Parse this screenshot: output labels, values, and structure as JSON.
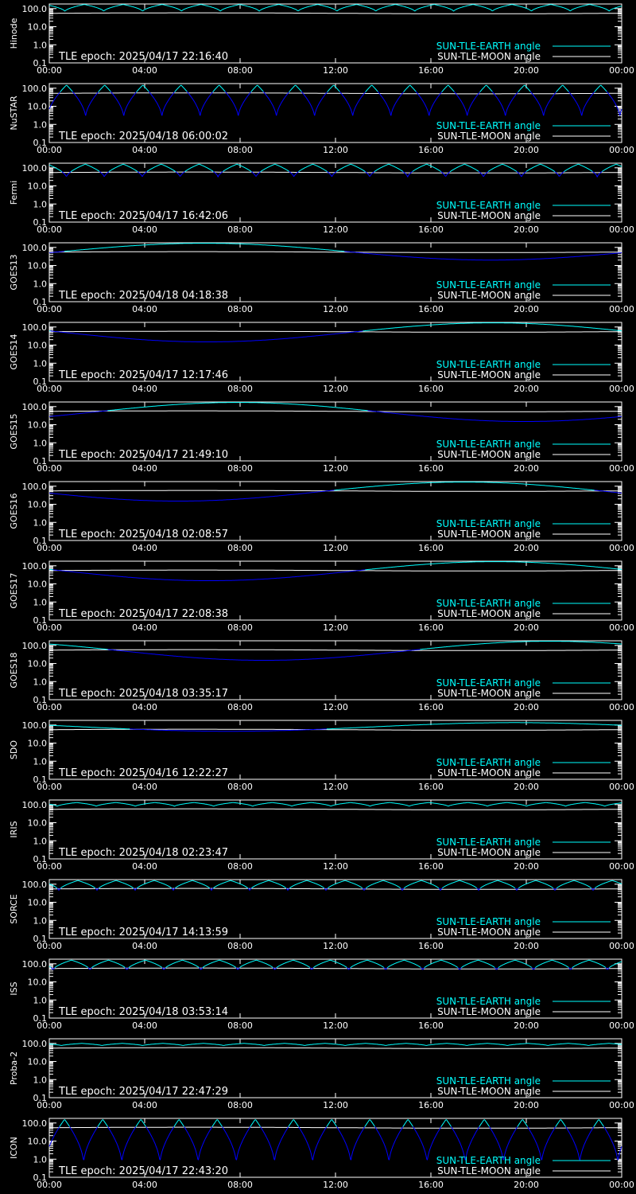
{
  "colors": {
    "background": "#000000",
    "earth": "#00FFFF",
    "moon": "#FFFFFF",
    "deep": "#0000FF",
    "axes": "#FFFFFF"
  },
  "shared": {
    "y_ticks": [
      "100.0",
      "10.0",
      "1.0",
      "0.1"
    ],
    "x_ticks": [
      "00:00",
      "04:00",
      "08:00",
      "12:00",
      "16:00",
      "20:00",
      "00:00"
    ],
    "legend_earth": "SUN-TLE-EARTH angle",
    "legend_moon": "SUN-TLE-MOON angle",
    "epoch_prefix": "TLE epoch: "
  },
  "chart_data": [
    {
      "type": "line",
      "title": "",
      "ylabel": "Hinode",
      "epoch": "2025/04/17 22:16:40",
      "scale": "log",
      "ylim": [
        0.1,
        180
      ],
      "xlim": [
        0,
        24
      ],
      "earth": {
        "mode": "periodic",
        "period_h": 1.63,
        "phase": 0.1,
        "max": 170,
        "min": 70
      },
      "moon": {
        "mode": "flat",
        "value": 55
      }
    },
    {
      "type": "line",
      "title": "",
      "ylabel": "NuSTAR",
      "epoch": "2025/04/18 06:00:02",
      "scale": "log",
      "ylim": [
        0.1,
        180
      ],
      "xlim": [
        0,
        24
      ],
      "earth": {
        "mode": "periodic",
        "period_h": 1.6,
        "phase": 0.55,
        "max": 150,
        "min": 2.5
      },
      "moon": {
        "mode": "flat",
        "value": 52
      }
    },
    {
      "type": "line",
      "title": "",
      "ylabel": "Fermi",
      "epoch": "2025/04/17 16:42:06",
      "scale": "log",
      "ylim": [
        0.1,
        180
      ],
      "xlim": [
        0,
        24
      ],
      "earth": {
        "mode": "periodic",
        "period_h": 1.59,
        "phase": 0.05,
        "max": 160,
        "min": 30
      },
      "moon": {
        "mode": "flat",
        "value": 55
      }
    },
    {
      "type": "line",
      "title": "",
      "ylabel": "GOES13",
      "epoch": "2025/04/18 04:18:38",
      "scale": "log",
      "ylim": [
        0.1,
        180
      ],
      "xlim": [
        0,
        24
      ],
      "earth": {
        "mode": "daily",
        "min_time_h": 18.5,
        "max": 170,
        "min": 20
      },
      "moon": {
        "mode": "flat",
        "value": 55
      }
    },
    {
      "type": "line",
      "title": "",
      "ylabel": "GOES14",
      "epoch": "2025/04/17 12:17:46",
      "scale": "log",
      "ylim": [
        0.1,
        180
      ],
      "xlim": [
        0,
        24
      ],
      "earth": {
        "mode": "daily",
        "min_time_h": 6.6,
        "max": 170,
        "min": 15
      },
      "moon": {
        "mode": "flat",
        "value": 55
      }
    },
    {
      "type": "line",
      "title": "",
      "ylabel": "GOES15",
      "epoch": "2025/04/17 21:49:10",
      "scale": "log",
      "ylim": [
        0.1,
        180
      ],
      "xlim": [
        0,
        24
      ],
      "earth": {
        "mode": "daily",
        "min_time_h": 19.9,
        "max": 170,
        "min": 15
      },
      "moon": {
        "mode": "flat",
        "value": 55
      }
    },
    {
      "type": "line",
      "title": "",
      "ylabel": "GOES16",
      "epoch": "2025/04/18 02:08:57",
      "scale": "log",
      "ylim": [
        0.1,
        180
      ],
      "xlim": [
        0,
        24
      ],
      "earth": {
        "mode": "daily",
        "min_time_h": 5.4,
        "max": 170,
        "min": 15
      },
      "moon": {
        "mode": "flat",
        "value": 55
      }
    },
    {
      "type": "line",
      "title": "",
      "ylabel": "GOES17",
      "epoch": "2025/04/17 22:08:38",
      "scale": "log",
      "ylim": [
        0.1,
        180
      ],
      "xlim": [
        0,
        24
      ],
      "earth": {
        "mode": "daily",
        "min_time_h": 6.7,
        "max": 170,
        "min": 15
      },
      "moon": {
        "mode": "flat",
        "value": 55
      }
    },
    {
      "type": "line",
      "title": "",
      "ylabel": "GOES18",
      "epoch": "2025/04/18 03:35:17",
      "scale": "log",
      "ylim": [
        0.1,
        180
      ],
      "xlim": [
        0,
        24
      ],
      "earth": {
        "mode": "daily",
        "min_time_h": 9.0,
        "max": 170,
        "min": 15
      },
      "moon": {
        "mode": "flat",
        "value": 55
      }
    },
    {
      "type": "line",
      "title": "",
      "ylabel": "SDO",
      "epoch": "2025/04/16 12:22:27",
      "scale": "log",
      "ylim": [
        0.1,
        180
      ],
      "xlim": [
        0,
        24
      ],
      "earth": {
        "mode": "daily",
        "min_time_h": 7.5,
        "max": 135,
        "min": 45
      },
      "moon": {
        "mode": "flat",
        "value": 55
      }
    },
    {
      "type": "line",
      "title": "",
      "ylabel": "IRIS",
      "epoch": "2025/04/18 02:23:47",
      "scale": "log",
      "ylim": [
        0.1,
        180
      ],
      "xlim": [
        0,
        24
      ],
      "earth": {
        "mode": "periodic",
        "period_h": 1.64,
        "phase": 0.3,
        "max": 130,
        "min": 80
      },
      "moon": {
        "mode": "flat",
        "value": 55
      }
    },
    {
      "type": "line",
      "title": "",
      "ylabel": "SORCE",
      "epoch": "2025/04/17 14:13:59",
      "scale": "log",
      "ylim": [
        0.1,
        180
      ],
      "xlim": [
        0,
        24
      ],
      "earth": {
        "mode": "periodic",
        "period_h": 1.6,
        "phase": 0.25,
        "max": 160,
        "min": 45
      },
      "moon": {
        "mode": "flat",
        "value": 55
      }
    },
    {
      "type": "line",
      "title": "",
      "ylabel": "ISS",
      "epoch": "2025/04/18 03:53:14",
      "scale": "log",
      "ylim": [
        0.1,
        180
      ],
      "xlim": [
        0,
        24
      ],
      "earth": {
        "mode": "periodic",
        "period_h": 1.55,
        "phase": 0.4,
        "max": 160,
        "min": 45
      },
      "moon": {
        "mode": "flat",
        "value": 55
      }
    },
    {
      "type": "line",
      "title": "",
      "ylabel": "Proba-2",
      "epoch": "2025/04/17 22:47:29",
      "scale": "log",
      "ylim": [
        0.1,
        180
      ],
      "xlim": [
        0,
        24
      ],
      "earth": {
        "mode": "periodic",
        "period_h": 1.7,
        "phase": 0.2,
        "max": 100,
        "min": 75
      },
      "moon": {
        "mode": "flat",
        "value": 55
      }
    },
    {
      "type": "line",
      "title": "",
      "ylabel": "ICON",
      "epoch": "2025/04/17 22:43:20",
      "scale": "log",
      "ylim": [
        0.1,
        180
      ],
      "xlim": [
        0,
        24
      ],
      "earth": {
        "mode": "periodic",
        "period_h": 1.6,
        "phase": 0.6,
        "max": 160,
        "min": 0.6
      },
      "moon": {
        "mode": "flat",
        "value": 55
      }
    }
  ]
}
